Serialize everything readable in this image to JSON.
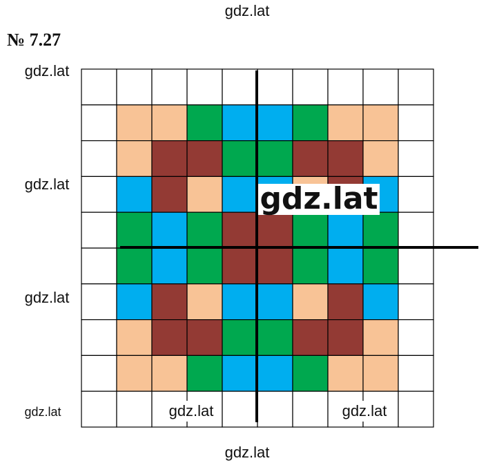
{
  "title": "№ 7.27",
  "watermarks": [
    "gdz.lat",
    "gdz.lat",
    "gdz.lat",
    "gdz.lat",
    "gdz.lat",
    "gdz.lat",
    "gdz.lat",
    "gdz.lat",
    "gdz.lat"
  ],
  "figure": {
    "rows": [
      [
        "#ffffff",
        "#ffffff",
        "#ffffff",
        "#ffffff",
        "#ffffff",
        "#ffffff",
        "#ffffff",
        "#ffffff",
        "#ffffff",
        "#ffffff"
      ],
      [
        "#ffffff",
        "#f8c396",
        "#f8c396",
        "#00a84f",
        "#00aeef",
        "#00aeef",
        "#00a84f",
        "#f8c396",
        "#f8c396",
        "#ffffff"
      ],
      [
        "#ffffff",
        "#f8c396",
        "#933a34",
        "#933a34",
        "#00a84f",
        "#00a84f",
        "#933a34",
        "#933a34",
        "#f8c396",
        "#ffffff"
      ],
      [
        "#ffffff",
        "#00aeef",
        "#933a34",
        "#f8c396",
        "#00aeef",
        "#00aeef",
        "#f8c396",
        "#933a34",
        "#00aeef",
        "#ffffff"
      ],
      [
        "#ffffff",
        "#00a84f",
        "#00aeef",
        "#00a84f",
        "#933a34",
        "#933a34",
        "#00a84f",
        "#00aeef",
        "#00a84f",
        "#ffffff"
      ],
      [
        "#ffffff",
        "#00a84f",
        "#00aeef",
        "#00a84f",
        "#933a34",
        "#933a34",
        "#00a84f",
        "#00aeef",
        "#00a84f",
        "#ffffff"
      ],
      [
        "#ffffff",
        "#00aeef",
        "#933a34",
        "#f8c396",
        "#00aeef",
        "#00aeef",
        "#f8c396",
        "#933a34",
        "#00aeef",
        "#ffffff"
      ],
      [
        "#ffffff",
        "#f8c396",
        "#933a34",
        "#933a34",
        "#00a84f",
        "#00a84f",
        "#933a34",
        "#933a34",
        "#f8c396",
        "#ffffff"
      ],
      [
        "#ffffff",
        "#f8c396",
        "#f8c396",
        "#00a84f",
        "#00aeef",
        "#00aeef",
        "#00a84f",
        "#f8c396",
        "#f8c396",
        "#ffffff"
      ],
      [
        "#ffffff",
        "#ffffff",
        "#ffffff",
        "#ffffff",
        "#ffffff",
        "#ffffff",
        "#ffffff",
        "#ffffff",
        "#ffffff",
        "#ffffff"
      ]
    ]
  }
}
